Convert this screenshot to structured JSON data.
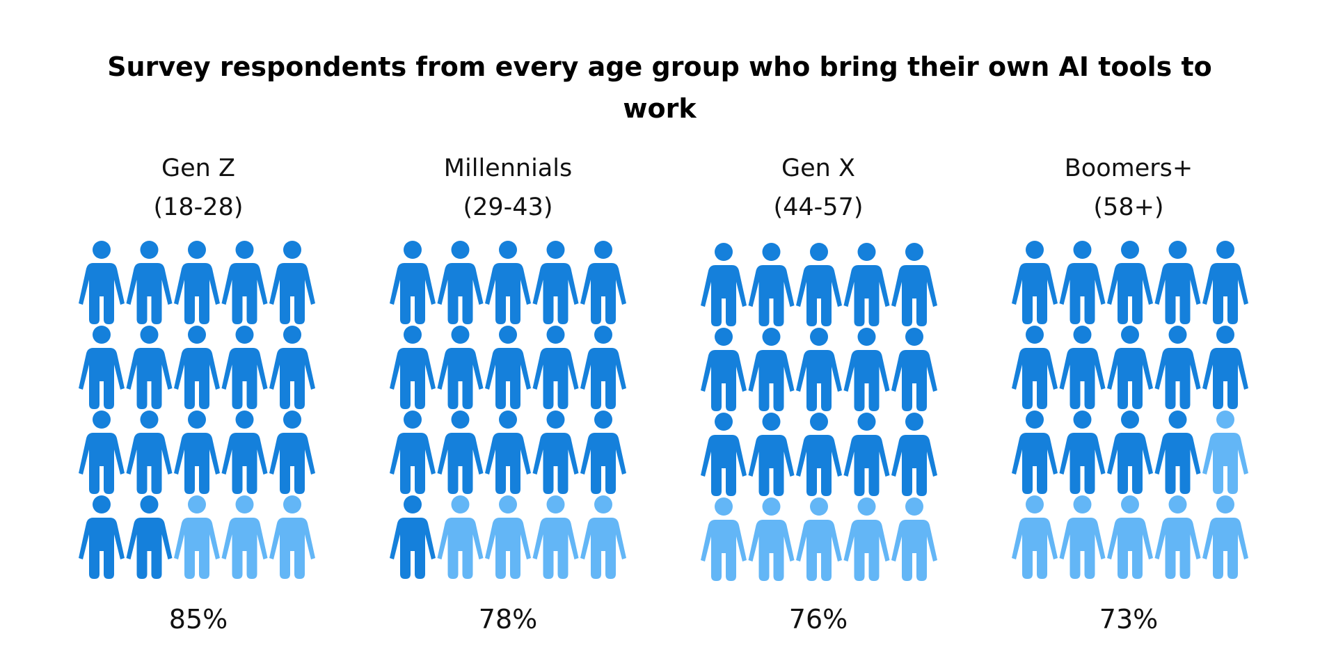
{
  "chart_data": {
    "type": "pictogram",
    "title": "Survey respondents from every age group who bring their own AI tools to work",
    "icon": "person-icon",
    "icons_per_group": 20,
    "grid": {
      "columns": 5,
      "rows": 4
    },
    "colors": {
      "filled": "#1580DB",
      "empty": "#63B6F6"
    },
    "groups": [
      {
        "name": "Gen Z",
        "range": "(18-28)",
        "value": 85,
        "label": "85%",
        "filled_icons": 17
      },
      {
        "name": "Millennials",
        "range": "(29-43)",
        "value": 78,
        "label": "78%",
        "filled_icons": 16
      },
      {
        "name": "Gen X",
        "range": "(44-57)",
        "value": 76,
        "label": "76%",
        "filled_icons": 15
      },
      {
        "name": "Boomers+",
        "range": "(58+)",
        "value": 73,
        "label": "73%",
        "filled_icons": 14
      }
    ]
  }
}
